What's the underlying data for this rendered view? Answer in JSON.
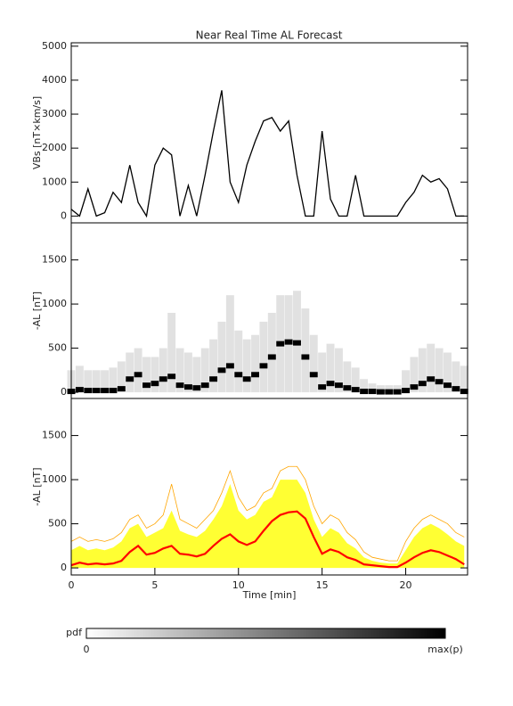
{
  "title": "Near Real Time AL Forecast",
  "colorbar": {
    "label": "pdf",
    "min_label": "0",
    "max_label": "max(p)"
  },
  "chart_data": [
    {
      "type": "line",
      "ylabel": "VBs [nT×km/s]",
      "color": "#000000",
      "x": [
        0,
        0.5,
        1,
        1.5,
        2,
        2.5,
        3,
        3.5,
        4,
        4.5,
        5,
        5.5,
        6,
        6.5,
        7,
        7.5,
        8,
        8.5,
        9,
        9.5,
        10,
        10.5,
        11,
        11.5,
        12,
        12.5,
        13,
        13.5,
        14,
        14.5,
        15,
        15.5,
        16,
        16.5,
        17,
        17.5,
        18,
        18.5,
        19,
        19.5,
        20,
        20.5,
        21,
        21.5,
        22,
        22.5,
        23,
        23.5
      ],
      "values": [
        200,
        0,
        800,
        0,
        100,
        700,
        400,
        1500,
        400,
        0,
        1500,
        2000,
        1800,
        0,
        900,
        0,
        1200,
        2500,
        3700,
        1000,
        400,
        1500,
        2200,
        2800,
        2900,
        2500,
        2800,
        1200,
        0,
        0,
        2500,
        500,
        0,
        0,
        1200,
        0,
        0,
        0,
        0,
        0,
        400,
        700,
        1200,
        1000,
        1100,
        800,
        0,
        0
      ],
      "xlim": [
        0,
        23.7
      ],
      "ylim": [
        -200,
        5100
      ],
      "yticks": [
        0,
        1000,
        2000,
        3000,
        4000,
        5000
      ]
    },
    {
      "type": "density",
      "ylabel": "-AL [nT]",
      "x": [
        0,
        0.5,
        1,
        1.5,
        2,
        2.5,
        3,
        3.5,
        4,
        4.5,
        5,
        5.5,
        6,
        6.5,
        7,
        7.5,
        8,
        8.5,
        9,
        9.5,
        10,
        10.5,
        11,
        11.5,
        12,
        12.5,
        13,
        13.5,
        14,
        14.5,
        15,
        15.5,
        16,
        16.5,
        17,
        17.5,
        18,
        18.5,
        19,
        19.5,
        20,
        20.5,
        21,
        21.5,
        22,
        22.5,
        23,
        23.5
      ],
      "series": [
        {
          "color": "#bdbdbd",
          "values": [
            250,
            300,
            250,
            250,
            250,
            280,
            350,
            450,
            500,
            400,
            400,
            500,
            900,
            500,
            450,
            400,
            500,
            600,
            800,
            1100,
            700,
            600,
            650,
            800,
            900,
            1100,
            1100,
            1150,
            950,
            650,
            450,
            550,
            500,
            350,
            280,
            150,
            100,
            80,
            80,
            80,
            250,
            400,
            500,
            550,
            500,
            450,
            350,
            300
          ]
        },
        {
          "color": "#000000",
          "values": [
            10,
            30,
            20,
            20,
            20,
            20,
            40,
            150,
            200,
            80,
            100,
            150,
            180,
            80,
            60,
            50,
            80,
            150,
            250,
            300,
            200,
            150,
            200,
            300,
            400,
            550,
            570,
            560,
            400,
            200,
            60,
            100,
            80,
            50,
            30,
            10,
            10,
            5,
            5,
            5,
            20,
            60,
            100,
            150,
            120,
            80,
            40,
            10
          ]
        }
      ],
      "xlim": [
        0,
        23.7
      ],
      "ylim": [
        -70,
        1920
      ],
      "yticks": [
        0,
        500,
        1000,
        1500
      ]
    },
    {
      "type": "band",
      "ylabel": "-AL [nT]",
      "xlabel": "Time [min]",
      "x": [
        0,
        0.5,
        1,
        1.5,
        2,
        2.5,
        3,
        3.5,
        4,
        4.5,
        5,
        5.5,
        6,
        6.5,
        7,
        7.5,
        8,
        8.5,
        9,
        9.5,
        10,
        10.5,
        11,
        11.5,
        12,
        12.5,
        13,
        13.5,
        14,
        14.5,
        15,
        15.5,
        16,
        16.5,
        17,
        17.5,
        18,
        18.5,
        19,
        19.5,
        20,
        20.5,
        21,
        21.5,
        22,
        22.5,
        23,
        23.5
      ],
      "series": [
        {
          "color": "#ffff33",
          "values": [
            200,
            250,
            200,
            220,
            200,
            230,
            300,
            450,
            500,
            350,
            400,
            450,
            650,
            420,
            380,
            350,
            420,
            550,
            700,
            950,
            650,
            550,
            600,
            750,
            800,
            1000,
            1000,
            1000,
            850,
            550,
            350,
            450,
            400,
            280,
            220,
            120,
            80,
            60,
            50,
            50,
            200,
            350,
            450,
            500,
            450,
            380,
            300,
            250
          ]
        },
        {
          "color": "#ffa500",
          "values": [
            300,
            350,
            300,
            320,
            300,
            330,
            400,
            550,
            600,
            450,
            500,
            600,
            950,
            550,
            500,
            450,
            550,
            650,
            850,
            1100,
            800,
            650,
            700,
            850,
            900,
            1100,
            1150,
            1150,
            1000,
            700,
            500,
            600,
            550,
            400,
            320,
            180,
            120,
            100,
            80,
            80,
            300,
            450,
            550,
            600,
            550,
            500,
            400,
            350
          ]
        },
        {
          "color": "#ff0000",
          "values": [
            30,
            60,
            40,
            50,
            40,
            50,
            80,
            180,
            250,
            150,
            170,
            220,
            250,
            160,
            150,
            130,
            160,
            250,
            330,
            380,
            300,
            260,
            300,
            420,
            530,
            600,
            630,
            640,
            560,
            350,
            160,
            210,
            180,
            120,
            90,
            40,
            30,
            20,
            10,
            10,
            60,
            120,
            170,
            200,
            180,
            140,
            100,
            40
          ]
        }
      ],
      "xlim": [
        0,
        23.7
      ],
      "ylim": [
        -80,
        1920
      ],
      "yticks": [
        0,
        500,
        1000,
        1500
      ],
      "xticks": [
        0,
        5,
        10,
        15,
        20
      ]
    }
  ]
}
